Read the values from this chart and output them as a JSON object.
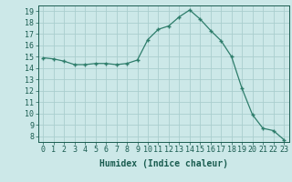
{
  "x": [
    0,
    1,
    2,
    3,
    4,
    5,
    6,
    7,
    8,
    9,
    10,
    11,
    12,
    13,
    14,
    15,
    16,
    17,
    18,
    19,
    20,
    21,
    22,
    23
  ],
  "y": [
    14.9,
    14.8,
    14.6,
    14.3,
    14.3,
    14.4,
    14.4,
    14.3,
    14.4,
    14.7,
    16.5,
    17.4,
    17.7,
    18.5,
    19.1,
    18.3,
    17.3,
    16.4,
    15.0,
    12.2,
    9.9,
    8.7,
    8.5,
    7.7
  ],
  "line_color": "#2e7d6b",
  "marker": "+",
  "bg_color": "#cce8e8",
  "grid_color": "#aacece",
  "xlabel": "Humidex (Indice chaleur)",
  "ylim": [
    7.5,
    19.5
  ],
  "xlim": [
    -0.5,
    23.5
  ],
  "yticks": [
    8,
    9,
    10,
    11,
    12,
    13,
    14,
    15,
    16,
    17,
    18,
    19
  ],
  "xticks": [
    0,
    1,
    2,
    3,
    4,
    5,
    6,
    7,
    8,
    9,
    10,
    11,
    12,
    13,
    14,
    15,
    16,
    17,
    18,
    19,
    20,
    21,
    22,
    23
  ],
  "tick_color": "#1a5c50",
  "label_color": "#1a5c50",
  "label_fontsize": 7,
  "tick_fontsize": 6
}
